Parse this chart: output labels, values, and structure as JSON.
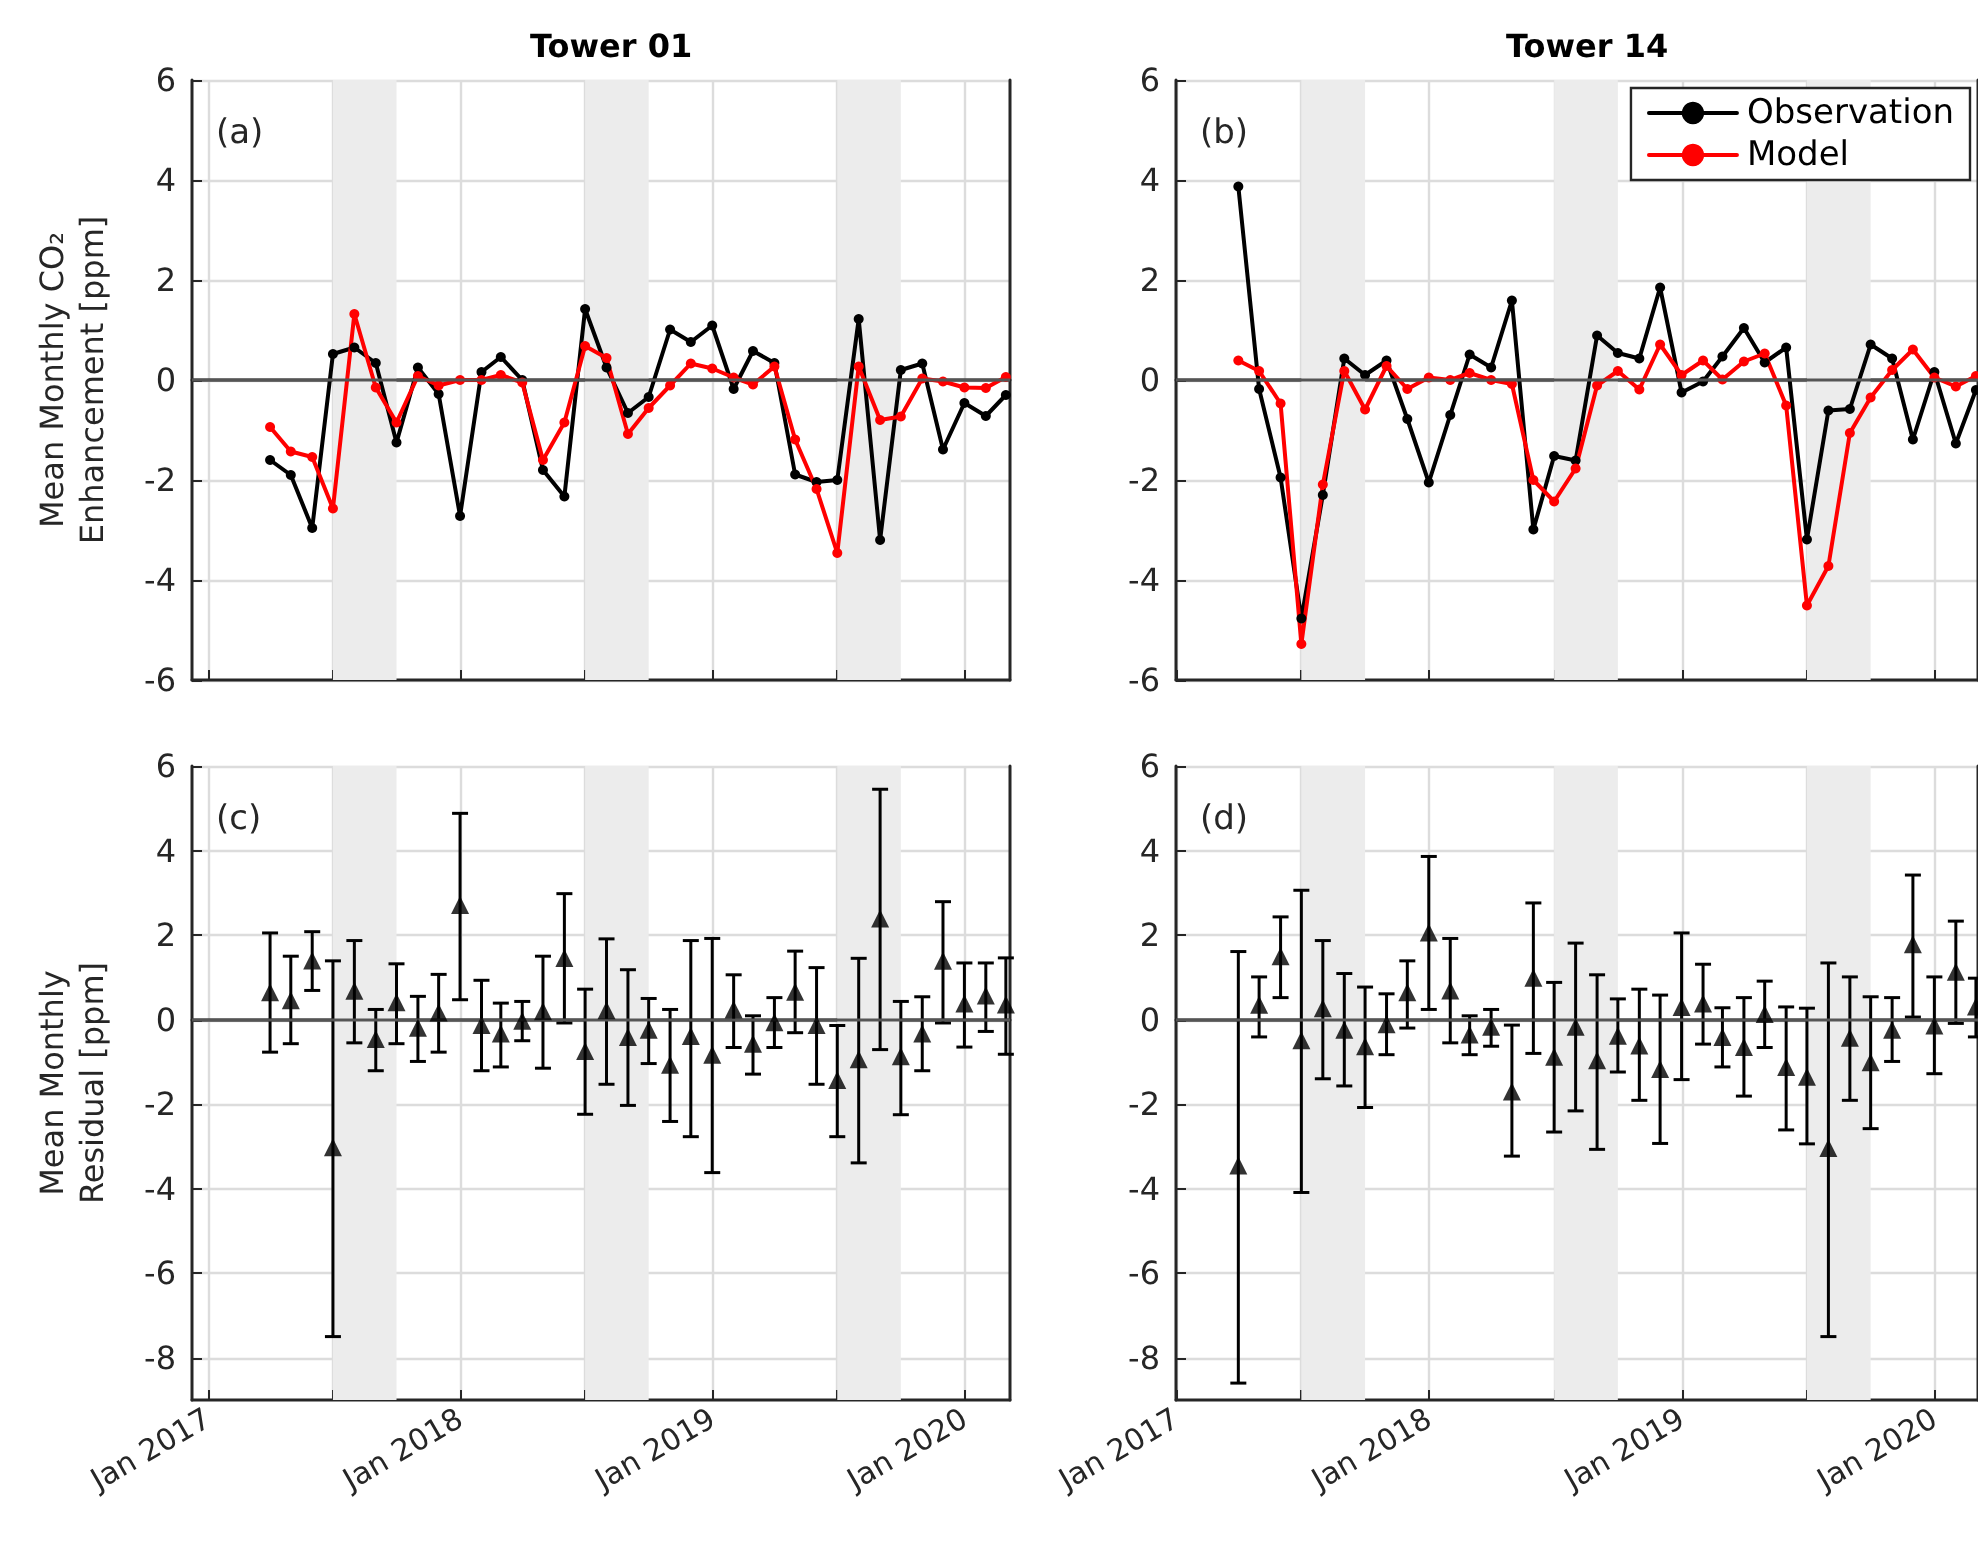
{
  "chart_data": [
    {
      "type": "line",
      "title": "Tower 01",
      "ylabel": "Mean Monthly CO₂\nEnhancement [ppm]",
      "annotations": [
        "(a)"
      ],
      "tick_labels": "y",
      "grid": true,
      "marker": "circle",
      "x": [
        "2017-04",
        "2017-05",
        "2017-06",
        "2017-07",
        "2017-08",
        "2017-09",
        "2017-10",
        "2017-11",
        "2017-12",
        "2018-01",
        "2018-02",
        "2018-03",
        "2018-04",
        "2018-05",
        "2018-06",
        "2018-07",
        "2018-08",
        "2018-09",
        "2018-10",
        "2018-11",
        "2018-12",
        "2019-01",
        "2019-02",
        "2019-03",
        "2019-04",
        "2019-05",
        "2019-06",
        "2019-07",
        "2019-08",
        "2019-09",
        "2019-10",
        "2019-11",
        "2019-12",
        "2020-01",
        "2020-02",
        "2020-03"
      ],
      "xlim": [
        "2016-12-09",
        "2020-03-07"
      ],
      "xticks": [
        {
          "value": "2017-01",
          "label": null
        },
        {
          "value": "2017-07",
          "label": null
        },
        {
          "value": "2018-01",
          "label": null
        },
        {
          "value": "2018-07",
          "label": null
        },
        {
          "value": "2019-01",
          "label": null
        },
        {
          "value": "2019-07",
          "label": null
        },
        {
          "value": "2020-01",
          "label": null
        }
      ],
      "ylim": [
        -6,
        6
      ],
      "yticks": [
        -6,
        -4,
        -2,
        0,
        2,
        4,
        6
      ],
      "bands": [
        {
          "axis": "x",
          "from": "2017-07",
          "to": "2017-10",
          "color": "#ececec"
        },
        {
          "axis": "x",
          "from": "2018-07",
          "to": "2018-10",
          "color": "#ececec"
        },
        {
          "axis": "x",
          "from": "2019-07",
          "to": "2019-10",
          "color": "#ececec"
        }
      ],
      "ref_lines": [
        {
          "axis": "y",
          "value": 0,
          "color": "#555555"
        }
      ],
      "series": [
        {
          "color": "#000000",
          "values": [
            -1.6,
            -1.9,
            -2.96,
            0.52,
            0.65,
            0.34,
            -1.25,
            0.25,
            -0.28,
            -2.72,
            0.16,
            0.46,
            0.0,
            -1.8,
            -2.33,
            1.42,
            0.25,
            -0.66,
            -0.34,
            1.01,
            0.76,
            1.09,
            -0.18,
            0.58,
            0.34,
            -1.89,
            -2.04,
            -2.0,
            1.22,
            -3.2,
            0.2,
            0.33,
            -1.39,
            -0.46,
            -0.72,
            -0.3
          ]
        },
        {
          "color": "#ff0000",
          "values": [
            -0.94,
            -1.43,
            -1.54,
            -2.57,
            1.32,
            -0.15,
            -0.85,
            0.08,
            -0.11,
            0.0,
            0.0,
            0.1,
            -0.05,
            -1.6,
            -0.85,
            0.68,
            0.44,
            -1.08,
            -0.56,
            -0.11,
            0.33,
            0.23,
            0.05,
            -0.09,
            0.27,
            -1.19,
            -2.18,
            -3.46,
            0.27,
            -0.8,
            -0.73,
            0.03,
            -0.03,
            -0.15,
            -0.16,
            0.06
          ]
        }
      ]
    },
    {
      "type": "line",
      "title": "Tower 14",
      "annotations": [
        "(b)"
      ],
      "tick_labels": "y",
      "grid": true,
      "marker": "circle",
      "legend": "top right",
      "x": [
        "2017-04",
        "2017-05",
        "2017-06",
        "2017-07",
        "2017-08",
        "2017-09",
        "2017-10",
        "2017-11",
        "2017-12",
        "2018-01",
        "2018-02",
        "2018-03",
        "2018-04",
        "2018-05",
        "2018-06",
        "2018-07",
        "2018-08",
        "2018-09",
        "2018-10",
        "2018-11",
        "2018-12",
        "2019-01",
        "2019-02",
        "2019-03",
        "2019-04",
        "2019-05",
        "2019-06",
        "2019-07",
        "2019-08",
        "2019-09",
        "2019-10",
        "2019-11",
        "2019-12",
        "2020-01",
        "2020-02",
        "2020-03"
      ],
      "xlim": [
        "2017-01-01",
        "2020-03-04"
      ],
      "xticks": [
        {
          "value": "2017-01",
          "label": null
        },
        {
          "value": "2017-07",
          "label": null
        },
        {
          "value": "2018-01",
          "label": null
        },
        {
          "value": "2018-07",
          "label": null
        },
        {
          "value": "2019-01",
          "label": null
        },
        {
          "value": "2019-07",
          "label": null
        },
        {
          "value": "2020-01",
          "label": null
        }
      ],
      "ylim": [
        -6,
        6
      ],
      "yticks": [
        -6,
        -4,
        -2,
        0,
        2,
        4,
        6
      ],
      "bands": [
        {
          "axis": "x",
          "from": "2017-07",
          "to": "2017-10",
          "color": "#ececec"
        },
        {
          "axis": "x",
          "from": "2018-07",
          "to": "2018-10",
          "color": "#ececec"
        },
        {
          "axis": "x",
          "from": "2019-07",
          "to": "2019-10",
          "color": "#ececec"
        }
      ],
      "ref_lines": [
        {
          "axis": "y",
          "value": 0,
          "color": "#555555"
        }
      ],
      "series": [
        {
          "name": "Observation",
          "color": "#000000",
          "values": [
            3.87,
            -0.18,
            -1.95,
            -4.77,
            -2.3,
            0.43,
            0.1,
            0.39,
            -0.78,
            -2.05,
            -0.7,
            0.51,
            0.25,
            1.59,
            -2.99,
            -1.52,
            -1.61,
            0.89,
            0.54,
            0.43,
            1.85,
            -0.25,
            -0.03,
            0.47,
            1.04,
            0.35,
            0.65,
            -3.19,
            -0.61,
            -0.58,
            0.71,
            0.43,
            -1.19,
            0.16,
            -1.27,
            -0.2
          ]
        },
        {
          "name": "Model",
          "color": "#ff0000",
          "values": [
            0.39,
            0.18,
            -0.47,
            -5.28,
            -2.09,
            0.18,
            -0.59,
            0.28,
            -0.18,
            0.05,
            0.0,
            0.14,
            0.0,
            -0.08,
            -2.0,
            -2.43,
            -1.77,
            -0.11,
            0.18,
            -0.19,
            0.71,
            0.1,
            0.39,
            0.01,
            0.37,
            0.53,
            -0.51,
            -4.51,
            -3.72,
            -1.06,
            -0.35,
            0.2,
            0.61,
            0.05,
            -0.13,
            0.08
          ]
        }
      ]
    },
    {
      "type": "scatter",
      "ylabel": "Mean Monthly\nResidual [ppm]",
      "annotations": [
        "(c)"
      ],
      "grid": true,
      "marker": "triangle",
      "color": "#000000",
      "x": [
        "2017-04",
        "2017-05",
        "2017-06",
        "2017-07",
        "2017-08",
        "2017-09",
        "2017-10",
        "2017-11",
        "2017-12",
        "2018-01",
        "2018-02",
        "2018-03",
        "2018-04",
        "2018-05",
        "2018-06",
        "2018-07",
        "2018-08",
        "2018-09",
        "2018-10",
        "2018-11",
        "2018-12",
        "2019-01",
        "2019-02",
        "2019-03",
        "2019-04",
        "2019-05",
        "2019-06",
        "2019-07",
        "2019-08",
        "2019-09",
        "2019-10",
        "2019-11",
        "2019-12",
        "2020-01",
        "2020-02",
        "2020-03"
      ],
      "xlim": [
        "2016-12-09",
        "2020-03-07"
      ],
      "xticks": [
        {
          "value": "2017-01",
          "label": "Jan 2017"
        },
        {
          "value": "2017-07",
          "label": null
        },
        {
          "value": "2018-01",
          "label": "Jan 2018"
        },
        {
          "value": "2018-07",
          "label": null
        },
        {
          "value": "2019-01",
          "label": "Jan 2019"
        },
        {
          "value": "2019-07",
          "label": null
        },
        {
          "value": "2020-01",
          "label": "Jan 2020"
        }
      ],
      "ylim": [
        -9,
        6
      ],
      "yticks": [
        -8,
        -6,
        -4,
        -2,
        0,
        2,
        4,
        6
      ],
      "bands": [
        {
          "axis": "x",
          "from": "2017-07",
          "to": "2017-10",
          "color": "#ececec"
        },
        {
          "axis": "x",
          "from": "2018-07",
          "to": "2018-10",
          "color": "#ececec"
        },
        {
          "axis": "x",
          "from": "2019-07",
          "to": "2019-10",
          "color": "#ececec"
        }
      ],
      "ref_lines": [
        {
          "axis": "y",
          "value": 0,
          "color": "#555555"
        }
      ],
      "values": [
        0.65,
        0.46,
        1.4,
        -3.02,
        0.68,
        -0.46,
        0.41,
        -0.19,
        0.17,
        2.71,
        -0.13,
        -0.33,
        -0.03,
        0.2,
        1.46,
        -0.74,
        0.22,
        -0.41,
        -0.24,
        -1.07,
        -0.39,
        -0.83,
        0.24,
        -0.57,
        -0.06,
        0.66,
        -0.13,
        -1.43,
        -0.94,
        2.39,
        -0.87,
        -0.33,
        1.39,
        0.38,
        0.57,
        0.36
      ],
      "errors": [
        [
          -0.77,
          2.05
        ],
        [
          -0.57,
          1.5
        ],
        [
          0.69,
          2.08
        ],
        [
          -7.5,
          1.39
        ],
        [
          -0.55,
          1.87
        ],
        [
          -1.21,
          0.24
        ],
        [
          -0.57,
          1.32
        ],
        [
          -0.99,
          0.55
        ],
        [
          -0.77,
          1.07
        ],
        [
          0.47,
          4.88
        ],
        [
          -1.21,
          0.93
        ],
        [
          -1.12,
          0.39
        ],
        [
          -0.5,
          0.43
        ],
        [
          -1.15,
          1.5
        ],
        [
          -0.08,
          2.98
        ],
        [
          -2.24,
          0.72
        ],
        [
          -1.53,
          1.91
        ],
        [
          -2.03,
          1.18
        ],
        [
          -1.04,
          0.5
        ],
        [
          -2.41,
          0.24
        ],
        [
          -2.77,
          1.87
        ],
        [
          -3.62,
          1.92
        ],
        [
          -0.66,
          1.06
        ],
        [
          -1.29,
          0.09
        ],
        [
          -0.66,
          0.52
        ],
        [
          -0.31,
          1.62
        ],
        [
          -1.53,
          1.23
        ],
        [
          -2.77,
          -0.14
        ],
        [
          -3.39,
          1.45
        ],
        [
          -0.71,
          5.45
        ],
        [
          -2.25,
          0.43
        ],
        [
          -1.21,
          0.54
        ],
        [
          -0.08,
          2.79
        ],
        [
          -0.65,
          1.34
        ],
        [
          -0.28,
          1.34
        ],
        [
          -0.82,
          1.46
        ]
      ]
    },
    {
      "type": "scatter",
      "annotations": [
        "(d)"
      ],
      "grid": true,
      "marker": "triangle",
      "color": "#000000",
      "x": [
        "2017-04",
        "2017-05",
        "2017-06",
        "2017-07",
        "2017-08",
        "2017-09",
        "2017-10",
        "2017-11",
        "2017-12",
        "2018-01",
        "2018-02",
        "2018-03",
        "2018-04",
        "2018-05",
        "2018-06",
        "2018-07",
        "2018-08",
        "2018-09",
        "2018-10",
        "2018-11",
        "2018-12",
        "2019-01",
        "2019-02",
        "2019-03",
        "2019-04",
        "2019-05",
        "2019-06",
        "2019-07",
        "2019-08",
        "2019-09",
        "2019-10",
        "2019-11",
        "2019-12",
        "2020-01",
        "2020-02",
        "2020-03"
      ],
      "xlim": [
        "2017-01-01",
        "2020-03-04"
      ],
      "xticks": [
        {
          "value": "2017-01",
          "label": "Jan 2017"
        },
        {
          "value": "2017-07",
          "label": null
        },
        {
          "value": "2018-01",
          "label": "Jan 2018"
        },
        {
          "value": "2018-07",
          "label": null
        },
        {
          "value": "2019-01",
          "label": "Jan 2019"
        },
        {
          "value": "2019-07",
          "label": null
        },
        {
          "value": "2020-01",
          "label": "Jan 2020"
        }
      ],
      "ylim": [
        -9,
        6
      ],
      "yticks": [
        -8,
        -6,
        -4,
        -2,
        0,
        2,
        4,
        6
      ],
      "bands": [
        {
          "axis": "x",
          "from": "2017-07",
          "to": "2017-10",
          "color": "#ececec"
        },
        {
          "axis": "x",
          "from": "2018-07",
          "to": "2018-10",
          "color": "#ececec"
        },
        {
          "axis": "x",
          "from": "2019-07",
          "to": "2019-10",
          "color": "#ececec"
        }
      ],
      "ref_lines": [
        {
          "axis": "y",
          "value": 0,
          "color": "#555555"
        }
      ],
      "values": [
        -3.45,
        0.35,
        1.5,
        -0.49,
        0.27,
        -0.24,
        -0.63,
        -0.11,
        0.65,
        2.06,
        0.69,
        -0.35,
        -0.17,
        -1.7,
        0.99,
        -0.88,
        -0.17,
        -0.96,
        -0.38,
        -0.61,
        -1.17,
        0.3,
        0.38,
        -0.41,
        -0.65,
        0.13,
        -1.12,
        -1.35,
        -3.04,
        -0.43,
        -1.01,
        -0.24,
        1.78,
        -0.14,
        1.13,
        0.31
      ],
      "errors": [
        [
          -8.6,
          1.61
        ],
        [
          -0.41,
          1.01
        ],
        [
          0.52,
          2.43
        ],
        [
          -4.09,
          3.06
        ],
        [
          -1.4,
          1.87
        ],
        [
          -1.57,
          1.09
        ],
        [
          -2.08,
          0.77
        ],
        [
          -0.83,
          0.61
        ],
        [
          -0.2,
          1.39
        ],
        [
          0.24,
          3.86
        ],
        [
          -0.55,
          1.92
        ],
        [
          -0.83,
          0.09
        ],
        [
          -0.63,
          0.24
        ],
        [
          -3.23,
          -0.13
        ],
        [
          -0.8,
          2.76
        ],
        [
          -2.66,
          0.88
        ],
        [
          -2.16,
          1.81
        ],
        [
          -3.07,
          1.06
        ],
        [
          -1.24,
          0.49
        ],
        [
          -1.91,
          0.72
        ],
        [
          -2.93,
          0.58
        ],
        [
          -1.42,
          2.05
        ],
        [
          -0.58,
          1.31
        ],
        [
          -1.12,
          0.28
        ],
        [
          -1.81,
          0.52
        ],
        [
          -0.66,
          0.91
        ],
        [
          -2.61,
          0.3
        ],
        [
          -2.94,
          0.27
        ],
        [
          -7.5,
          1.34
        ],
        [
          -1.91,
          1.01
        ],
        [
          -2.58,
          0.54
        ],
        [
          -0.99,
          0.52
        ],
        [
          0.06,
          3.42
        ],
        [
          -1.28,
          1.01
        ],
        [
          -0.09,
          2.33
        ],
        [
          -0.41,
          0.98
        ]
      ]
    }
  ]
}
